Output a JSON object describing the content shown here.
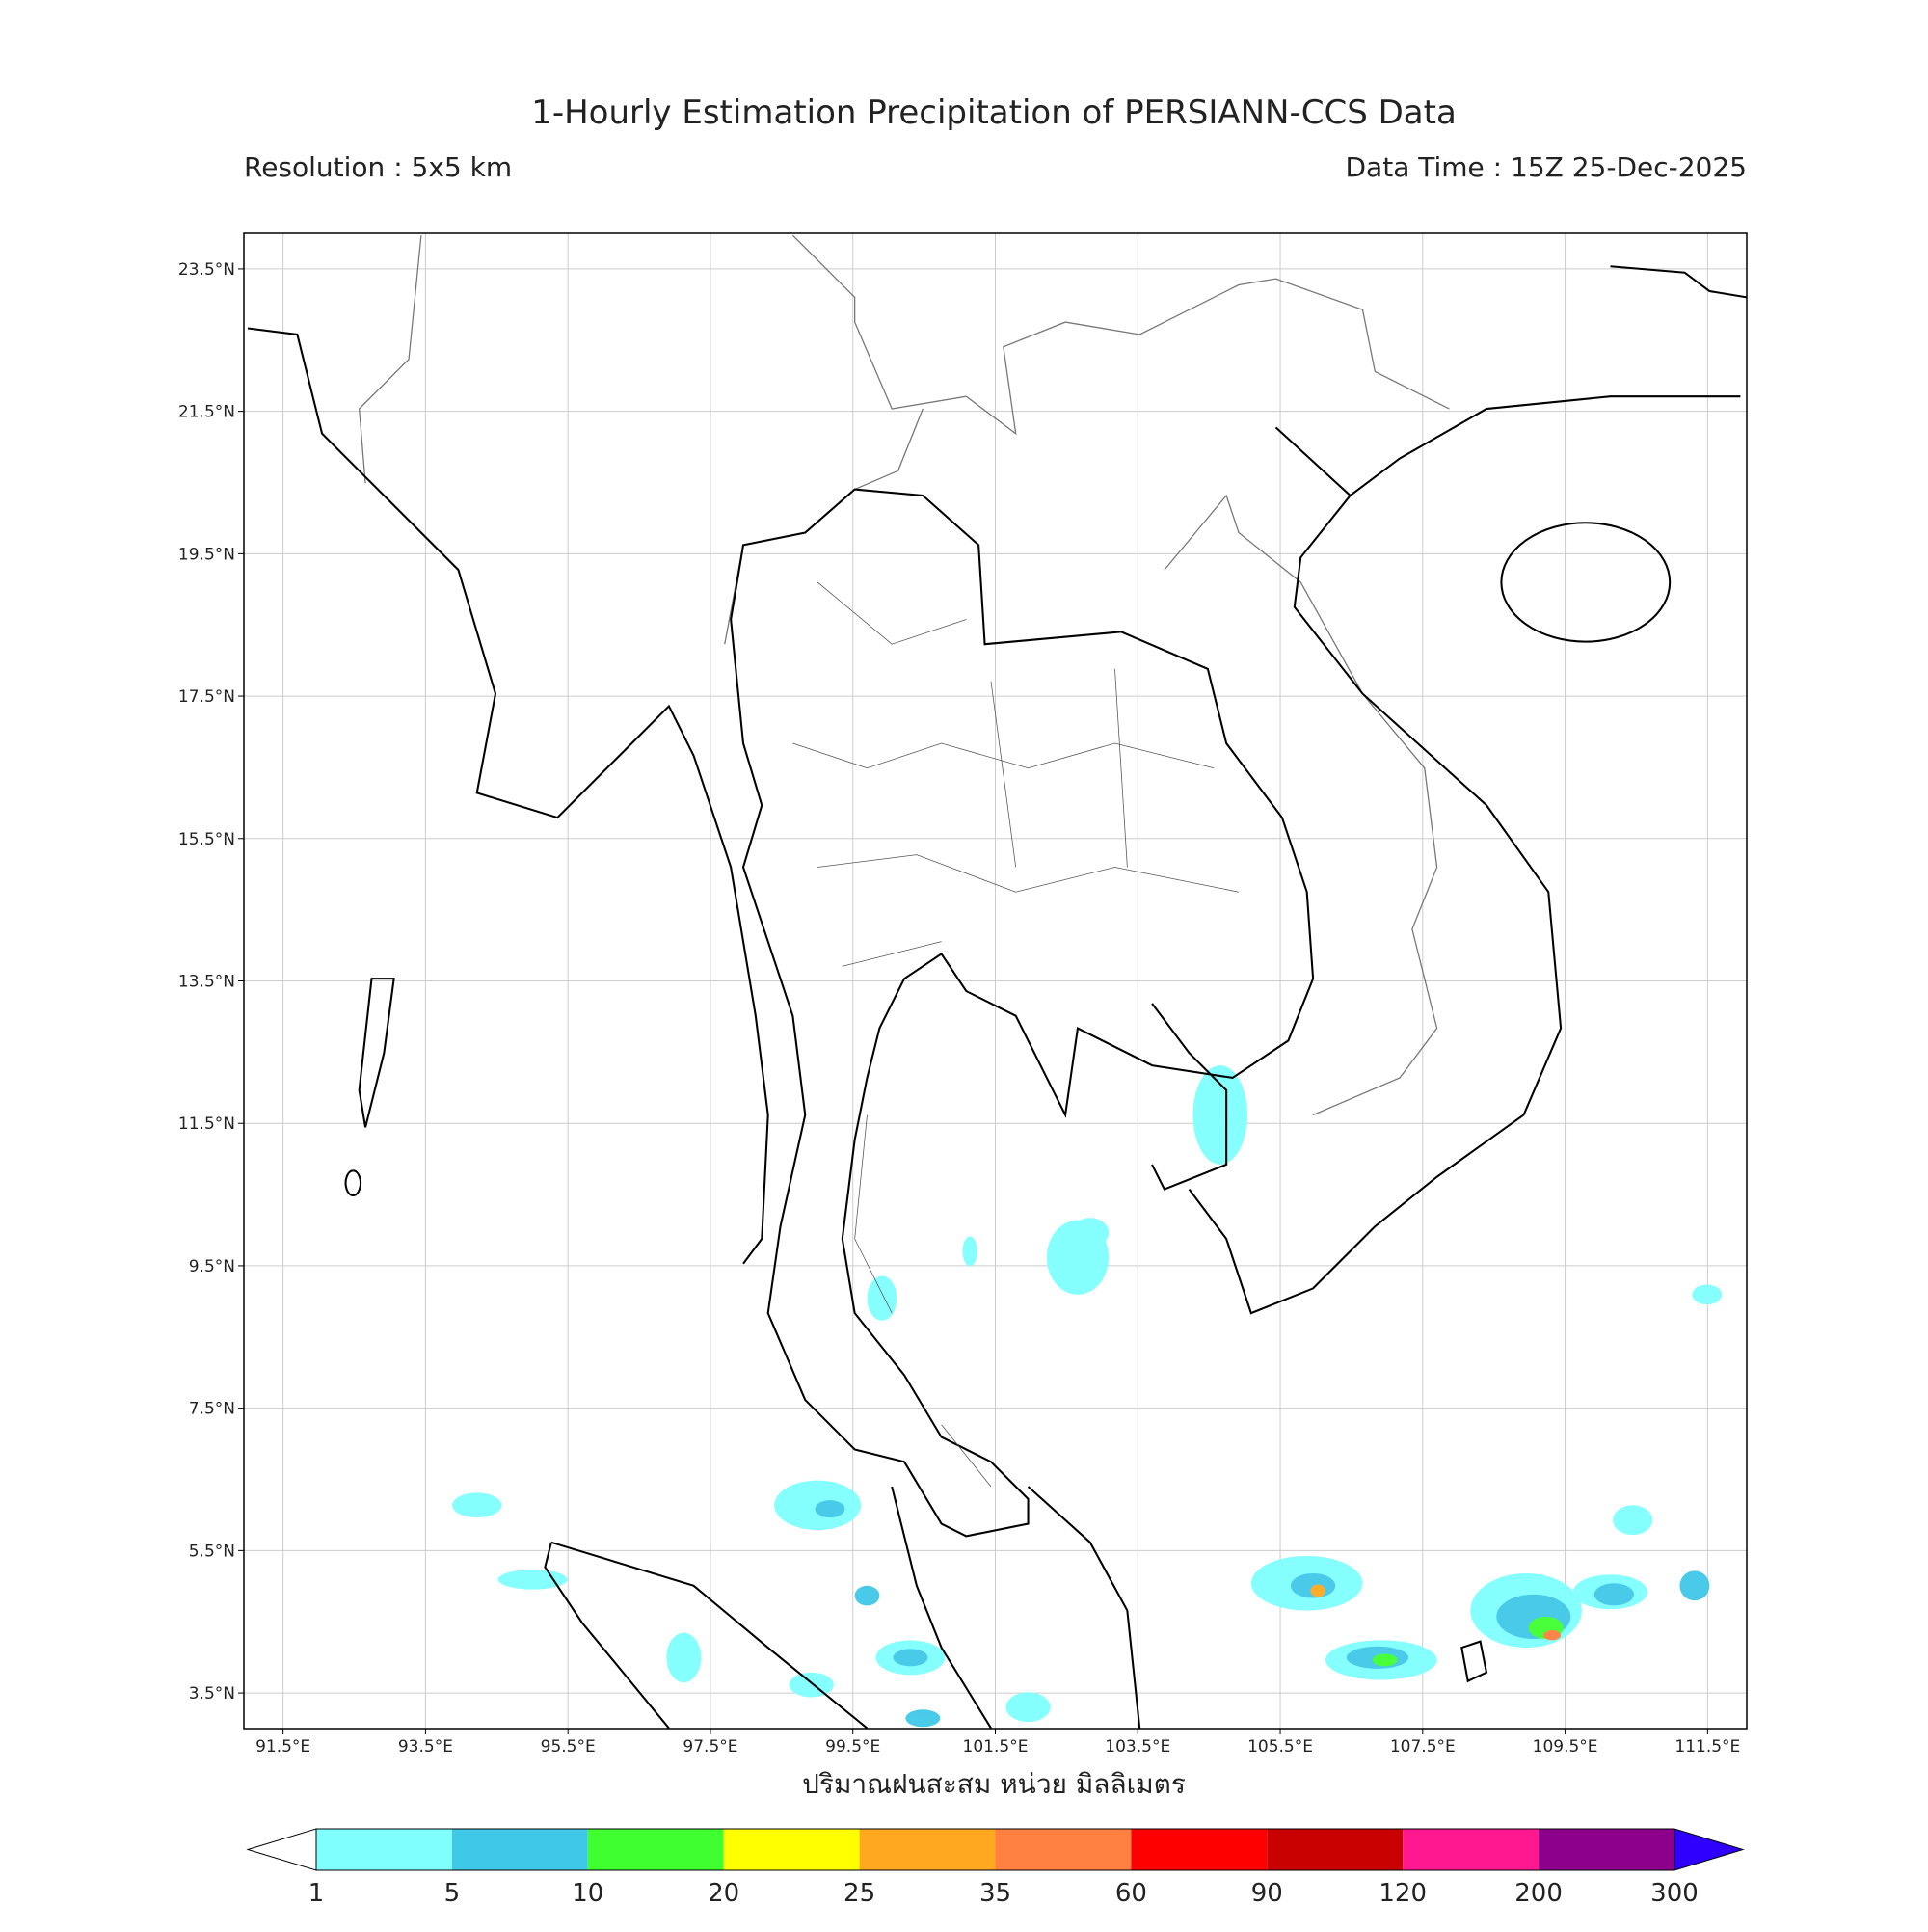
{
  "header": {
    "title": "1-Hourly Estimation Precipitation of PERSIANN-CCS Data",
    "resolution": "Resolution : 5x5 km",
    "data_time": "Data Time : 15Z 25-Dec-2025"
  },
  "map": {
    "lon_range": [
      90.95,
      112.05
    ],
    "lat_range": [
      3.0,
      24.0
    ],
    "lat_ticks": [
      {
        "value": 23.5,
        "label": "23.5°N"
      },
      {
        "value": 21.5,
        "label": "21.5°N"
      },
      {
        "value": 19.5,
        "label": "19.5°N"
      },
      {
        "value": 17.5,
        "label": "17.5°N"
      },
      {
        "value": 15.5,
        "label": "15.5°N"
      },
      {
        "value": 13.5,
        "label": "13.5°N"
      },
      {
        "value": 11.5,
        "label": "11.5°N"
      },
      {
        "value": 9.5,
        "label": "9.5°N"
      },
      {
        "value": 7.5,
        "label": "7.5°N"
      },
      {
        "value": 5.5,
        "label": "5.5°N"
      },
      {
        "value": 3.5,
        "label": "3.5°N"
      }
    ],
    "lon_ticks": [
      {
        "value": 91.5,
        "label": "91.5°E"
      },
      {
        "value": 93.5,
        "label": "93.5°E"
      },
      {
        "value": 95.5,
        "label": "95.5°E"
      },
      {
        "value": 97.5,
        "label": "97.5°E"
      },
      {
        "value": 99.5,
        "label": "99.5°E"
      },
      {
        "value": 101.5,
        "label": "101.5°E"
      },
      {
        "value": 103.5,
        "label": "103.5°E"
      },
      {
        "value": 105.5,
        "label": "105.5°E"
      },
      {
        "value": 107.5,
        "label": "107.5°E"
      },
      {
        "value": 109.5,
        "label": "109.5°E"
      },
      {
        "value": 111.5,
        "label": "111.5°E"
      }
    ]
  },
  "colorbar": {
    "label": "ปริมาณฝนสะสม หน่วย มิลลิเมตร",
    "levels": [
      1,
      5,
      10,
      20,
      25,
      35,
      60,
      90,
      120,
      200,
      300
    ],
    "colors": [
      "#80ffff",
      "#40c8e8",
      "#40ff30",
      "#ffff00",
      "#ffa820",
      "#ff8040",
      "#ff0000",
      "#c80000",
      "#ff1890",
      "#8c008c"
    ],
    "under_color": "#ffffff",
    "over_color": "#3000ff"
  }
}
